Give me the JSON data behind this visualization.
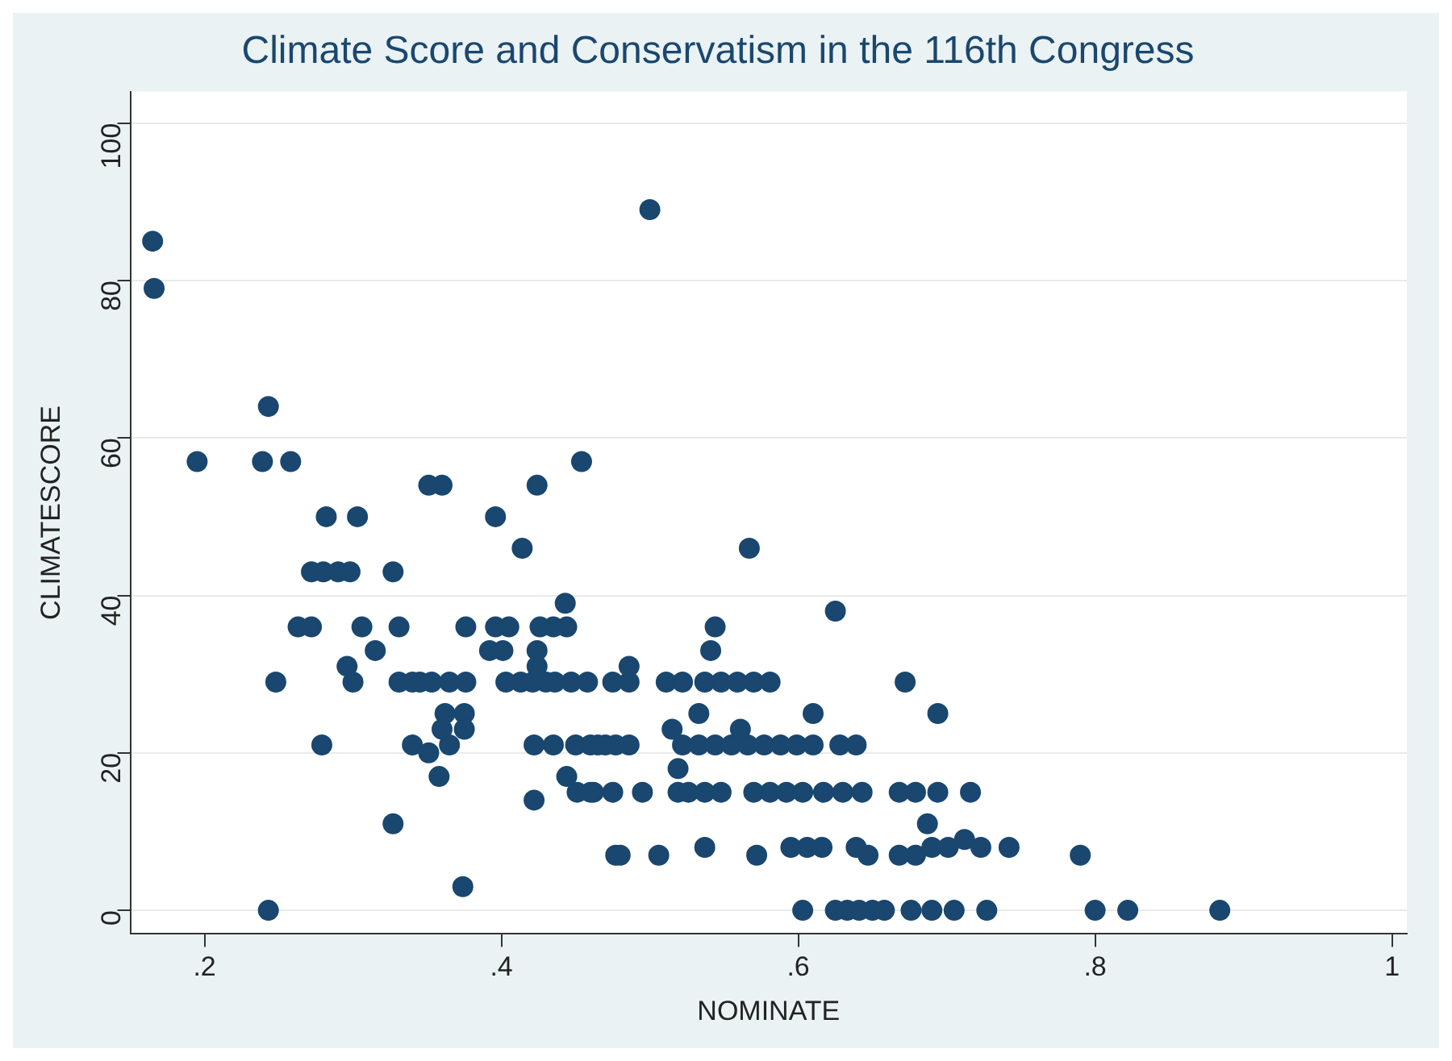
{
  "chart_data": {
    "type": "scatter",
    "title": "Climate Score and Conservatism in the 116th Congress",
    "xlabel": "NOMINATE",
    "ylabel": "CLIMATESCORE",
    "xlim": [
      0.15,
      1.01
    ],
    "xticks": [
      {
        "value": 0.2,
        "label": ".2"
      },
      {
        "value": 0.4,
        "label": ".4"
      },
      {
        "value": 0.6,
        "label": ".6"
      },
      {
        "value": 0.8,
        "label": ".8"
      },
      1
    ],
    "ylim": [
      -3,
      104
    ],
    "yticks": [
      0,
      20,
      40,
      60,
      80,
      100
    ],
    "grid": "y",
    "legend": false,
    "marker": "circle",
    "series": [
      {
        "color": "#1a476f",
        "x": [
          0.165,
          0.166,
          0.243,
          0.195,
          0.239,
          0.258,
          0.351,
          0.36,
          0.424,
          0.454,
          0.5,
          0.282,
          0.303,
          0.396,
          0.414,
          0.272,
          0.28,
          0.29,
          0.298,
          0.327,
          0.443,
          0.263,
          0.272,
          0.306,
          0.331,
          0.376,
          0.396,
          0.405,
          0.426,
          0.435,
          0.444,
          0.315,
          0.392,
          0.401,
          0.424,
          0.424,
          0.296,
          0.248,
          0.3,
          0.331,
          0.34,
          0.345,
          0.353,
          0.365,
          0.376,
          0.403,
          0.413,
          0.421,
          0.43,
          0.436,
          0.447,
          0.458,
          0.362,
          0.375,
          0.36,
          0.375,
          0.279,
          0.34,
          0.351,
          0.365,
          0.358,
          0.422,
          0.435,
          0.45,
          0.465,
          0.477,
          0.444,
          0.451,
          0.462,
          0.422,
          0.327,
          0.374,
          0.243,
          0.477,
          0.567,
          0.625,
          0.544,
          0.541,
          0.475,
          0.486,
          0.511,
          0.522,
          0.537,
          0.548,
          0.559,
          0.57,
          0.581,
          0.672,
          0.486,
          0.694,
          0.533,
          0.61,
          0.46,
          0.47,
          0.486,
          0.522,
          0.533,
          0.544,
          0.555,
          0.566,
          0.577,
          0.588,
          0.599,
          0.61,
          0.628,
          0.639,
          0.515,
          0.561,
          0.46,
          0.475,
          0.495,
          0.519,
          0.526,
          0.537,
          0.548,
          0.57,
          0.581,
          0.592,
          0.603,
          0.617,
          0.63,
          0.643,
          0.668,
          0.679,
          0.694,
          0.716,
          0.519,
          0.687,
          0.48,
          0.506,
          0.537,
          0.572,
          0.595,
          0.606,
          0.616,
          0.639,
          0.647,
          0.668,
          0.679,
          0.69,
          0.701,
          0.712,
          0.723,
          0.742,
          0.79,
          0.603,
          0.625,
          0.633,
          0.641,
          0.65,
          0.658,
          0.676,
          0.69,
          0.705,
          0.727,
          0.8,
          0.822,
          0.884
        ],
        "values": [
          85,
          79,
          64,
          57,
          57,
          57,
          54,
          54,
          54,
          57,
          89,
          50,
          50,
          50,
          46,
          43,
          43,
          43,
          43,
          43,
          39,
          36,
          36,
          36,
          36,
          36,
          36,
          36,
          36,
          36,
          36,
          33,
          33,
          33,
          33,
          31,
          31,
          29,
          29,
          29,
          29,
          29,
          29,
          29,
          29,
          29,
          29,
          29,
          29,
          29,
          29,
          29,
          25,
          25,
          23,
          23,
          21,
          21,
          20,
          21,
          17,
          21,
          21,
          21,
          21,
          21,
          17,
          15,
          15,
          14,
          11,
          3,
          0,
          7,
          46,
          38,
          36,
          33,
          29,
          29,
          29,
          29,
          29,
          29,
          29,
          29,
          29,
          29,
          31,
          25,
          25,
          25,
          21,
          21,
          21,
          21,
          21,
          21,
          21,
          21,
          21,
          21,
          21,
          21,
          21,
          21,
          23,
          23,
          15,
          15,
          15,
          15,
          15,
          15,
          15,
          15,
          15,
          15,
          15,
          15,
          15,
          15,
          15,
          15,
          15,
          15,
          18,
          11,
          7,
          7,
          8,
          7,
          8,
          8,
          8,
          8,
          7,
          7,
          7,
          8,
          8,
          9,
          8,
          8,
          7,
          0,
          0,
          0,
          0,
          0,
          0,
          0,
          0,
          0,
          0,
          0,
          0,
          0
        ]
      }
    ]
  }
}
